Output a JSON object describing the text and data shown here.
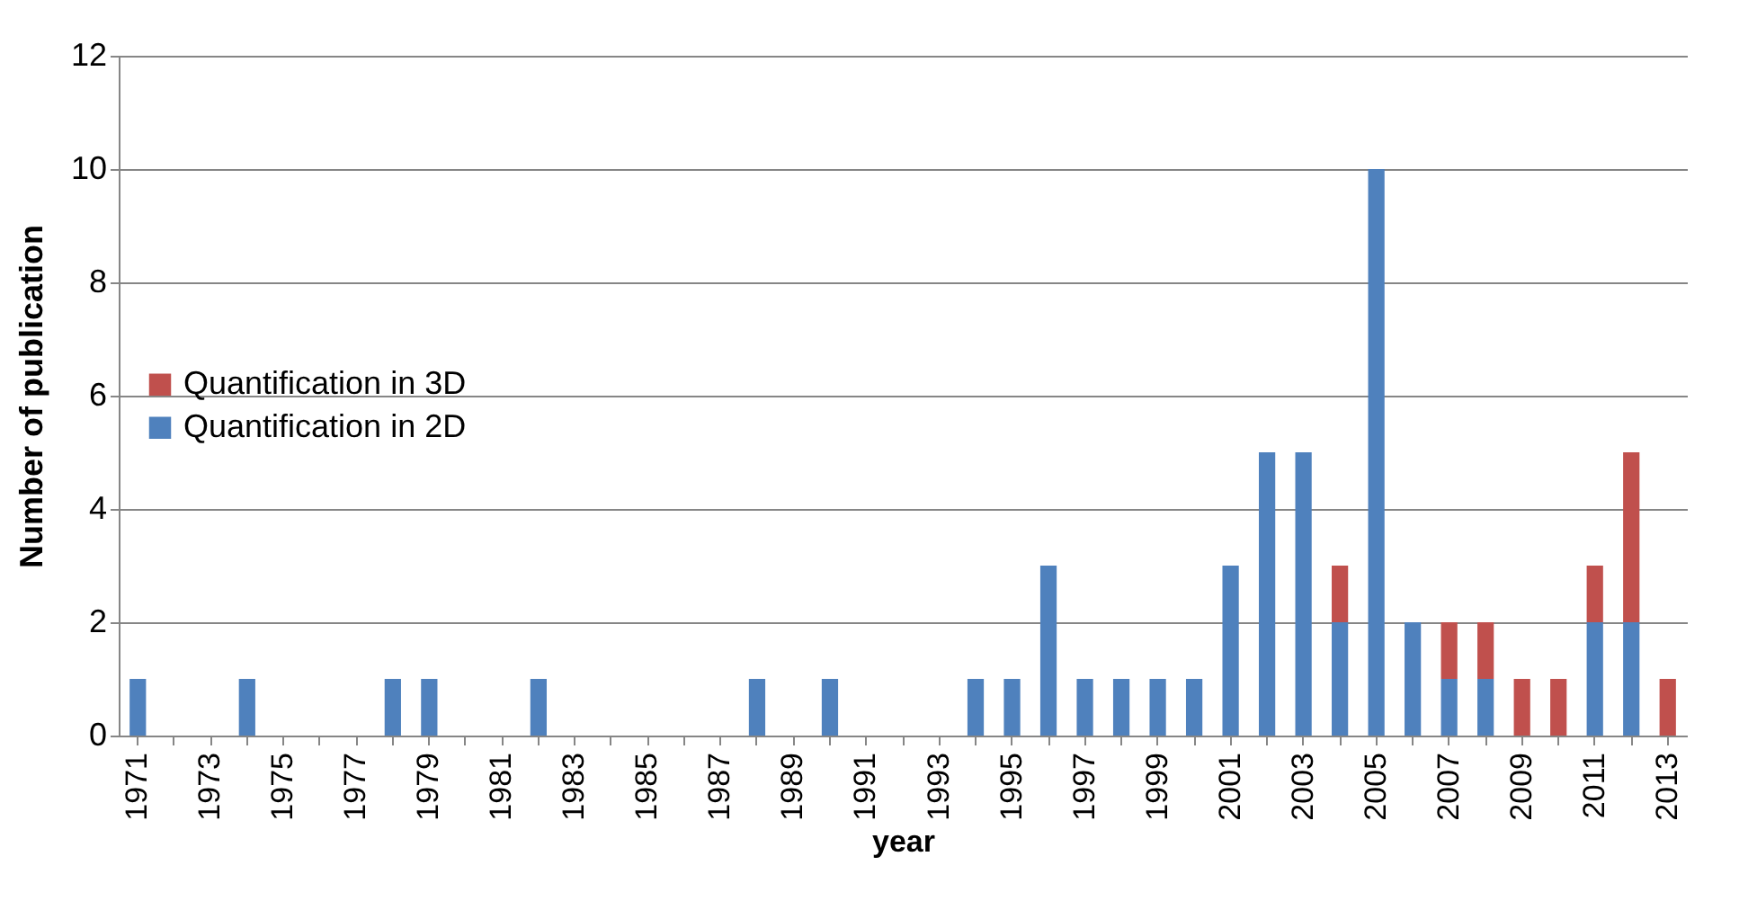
{
  "chart_data": {
    "type": "bar",
    "stacked": true,
    "xlabel": "year",
    "ylabel": "Number of publication",
    "categories": [
      "1971",
      null,
      "1973",
      null,
      "1975",
      null,
      "1977",
      null,
      "1979",
      null,
      "1981",
      null,
      "1983",
      null,
      "1985",
      null,
      "1987",
      null,
      "1989",
      null,
      "1991",
      null,
      "1993",
      null,
      "1995",
      null,
      "1997",
      null,
      "1999",
      null,
      "2001",
      null,
      "2003",
      null,
      "2005",
      null,
      "2007",
      null,
      "2009",
      null,
      "2011",
      null,
      "2013"
    ],
    "series": [
      {
        "name": "Quantification in 2D",
        "color": "#4f81bd",
        "values": [
          1,
          0,
          0,
          1,
          0,
          0,
          0,
          1,
          1,
          0,
          0,
          1,
          0,
          0,
          0,
          0,
          0,
          1,
          0,
          1,
          0,
          0,
          0,
          1,
          1,
          3,
          1,
          1,
          1,
          1,
          3,
          5,
          5,
          2,
          10,
          2,
          1,
          1,
          0,
          0,
          2,
          2,
          0
        ]
      },
      {
        "name": "Quantification in 3D",
        "color": "#c0504d",
        "values": [
          0,
          0,
          0,
          0,
          0,
          0,
          0,
          0,
          0,
          0,
          0,
          0,
          0,
          0,
          0,
          0,
          0,
          0,
          0,
          0,
          0,
          0,
          0,
          0,
          0,
          0,
          0,
          0,
          0,
          0,
          0,
          0,
          0,
          1,
          0,
          0,
          1,
          1,
          1,
          1,
          1,
          3,
          1
        ]
      }
    ],
    "ylim": [
      0,
      12
    ],
    "yticks": [
      0,
      2,
      4,
      6,
      8,
      10,
      12
    ],
    "grid": "y",
    "legend": "left"
  }
}
